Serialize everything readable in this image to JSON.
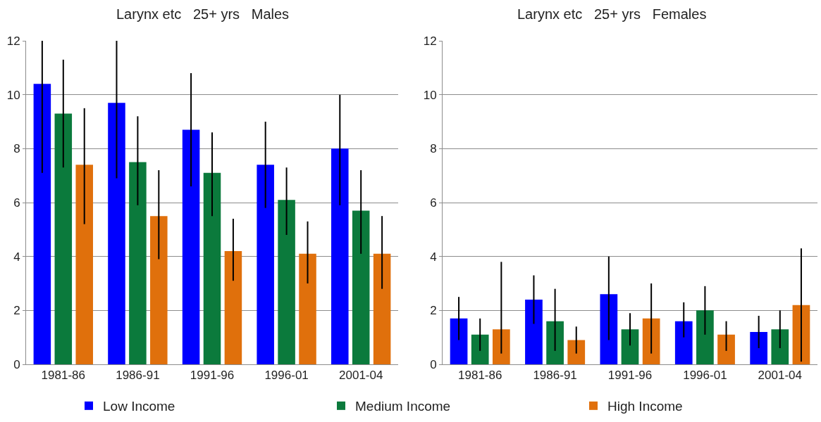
{
  "chart_data": [
    {
      "type": "bar",
      "title": "Larynx etc   25+ yrs   Males",
      "categories": [
        "1981-86",
        "1986-91",
        "1991-96",
        "1996-01",
        "2001-04"
      ],
      "series": [
        {
          "name": "Low Income",
          "color": "#0000ff",
          "values": [
            10.4,
            9.7,
            8.7,
            7.4,
            8.0
          ],
          "errors": [
            [
              7.1,
              12.0
            ],
            [
              6.9,
              12.0
            ],
            [
              6.6,
              10.8
            ],
            [
              5.8,
              9.0
            ],
            [
              5.9,
              10.0
            ]
          ]
        },
        {
          "name": "Medium Income",
          "color": "#0b7a3c",
          "values": [
            9.3,
            7.5,
            7.1,
            6.1,
            5.7
          ],
          "errors": [
            [
              7.3,
              11.3
            ],
            [
              5.9,
              9.2
            ],
            [
              5.5,
              8.6
            ],
            [
              4.8,
              7.3
            ],
            [
              4.1,
              7.2
            ]
          ]
        },
        {
          "name": "High Income",
          "color": "#e0700c",
          "values": [
            7.4,
            5.5,
            4.2,
            4.1,
            4.1
          ],
          "errors": [
            [
              5.2,
              9.5
            ],
            [
              3.9,
              7.2
            ],
            [
              3.1,
              5.4
            ],
            [
              3.0,
              5.3
            ],
            [
              2.8,
              5.5
            ]
          ]
        }
      ],
      "ylim": [
        0,
        12
      ],
      "yticks": [
        0,
        2,
        4,
        6,
        8,
        10,
        12
      ],
      "grid": "y",
      "legend": "bottom"
    },
    {
      "type": "bar",
      "title": "Larynx etc   25+ yrs   Females",
      "categories": [
        "1981-86",
        "1986-91",
        "1991-96",
        "1996-01",
        "2001-04"
      ],
      "series": [
        {
          "name": "Low Income",
          "color": "#0000ff",
          "values": [
            1.7,
            2.4,
            2.6,
            1.6,
            1.2
          ],
          "errors": [
            [
              0.9,
              2.5
            ],
            [
              1.5,
              3.3
            ],
            [
              0.9,
              4.0
            ],
            [
              1.0,
              2.3
            ],
            [
              0.6,
              1.8
            ]
          ]
        },
        {
          "name": "Medium Income",
          "color": "#0b7a3c",
          "values": [
            1.1,
            1.6,
            1.3,
            2.0,
            1.3
          ],
          "errors": [
            [
              0.5,
              1.7
            ],
            [
              0.5,
              2.8
            ],
            [
              0.7,
              1.9
            ],
            [
              1.1,
              2.9
            ],
            [
              0.6,
              2.0
            ]
          ]
        },
        {
          "name": "High Income",
          "color": "#e0700c",
          "values": [
            1.3,
            0.9,
            1.7,
            1.1,
            2.2
          ],
          "errors": [
            [
              0.4,
              3.8
            ],
            [
              0.4,
              1.4
            ],
            [
              0.4,
              3.0
            ],
            [
              0.5,
              1.6
            ],
            [
              0.1,
              4.3
            ]
          ]
        }
      ],
      "ylim": [
        0,
        12
      ],
      "yticks": [
        0,
        2,
        4,
        6,
        8,
        10,
        12
      ],
      "grid": "y",
      "legend": "bottom"
    }
  ]
}
